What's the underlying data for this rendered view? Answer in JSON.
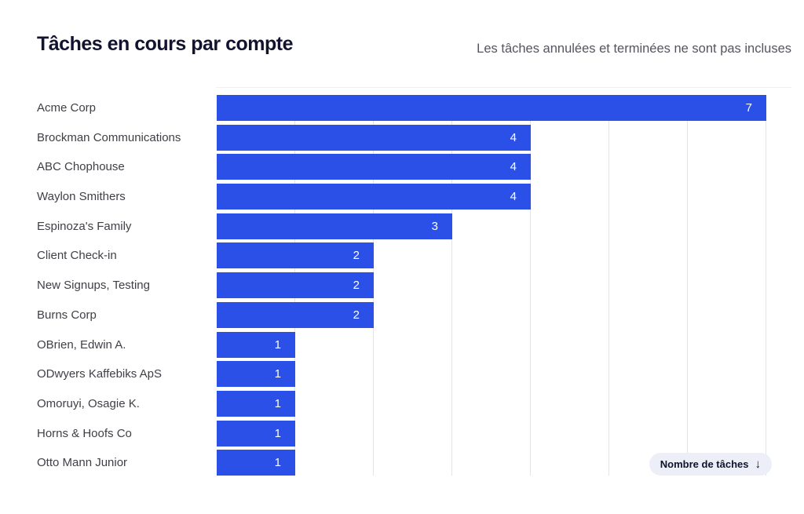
{
  "header": {
    "title": "Tâches en cours par compte",
    "subtitle": "Les tâches annulées et terminées ne sont pas incluses"
  },
  "chart_data": {
    "type": "bar",
    "orientation": "horizontal",
    "title": "Tâches en cours par compte",
    "subtitle": "Les tâches annulées et terminées ne sont pas incluses",
    "categories": [
      "Acme Corp",
      "Brockman Communications",
      "ABC Chophouse",
      "Waylon Smithers",
      "Espinoza's Family",
      "Client Check-in",
      "New Signups, Testing",
      "Burns Corp",
      "OBrien, Edwin A.",
      "ODwyers Kaffebiks ApS",
      "Omoruyi, Osagie K.",
      "Horns & Hoofs Co",
      "Otto Mann Junior"
    ],
    "values": [
      7,
      4,
      4,
      4,
      3,
      2,
      2,
      2,
      1,
      1,
      1,
      1,
      1
    ],
    "xlabel": "Nombre de tâches",
    "ylabel": "",
    "xlim": [
      0,
      7
    ],
    "gridline_values": [
      1,
      2,
      3,
      4,
      5,
      6,
      7
    ],
    "grid": "vertical",
    "legend_position": "none",
    "sort": "descending",
    "value_labels": "inside-end",
    "colors": {
      "bar": "#2b50e8",
      "value_label": "#ffffff",
      "gridline": "#dde5f2",
      "category_label": "#3e4046",
      "title": "#12132e",
      "subtitle": "#54555e"
    }
  },
  "sort_button": {
    "label": "Nombre de tâches",
    "icon": "arrow-down"
  }
}
